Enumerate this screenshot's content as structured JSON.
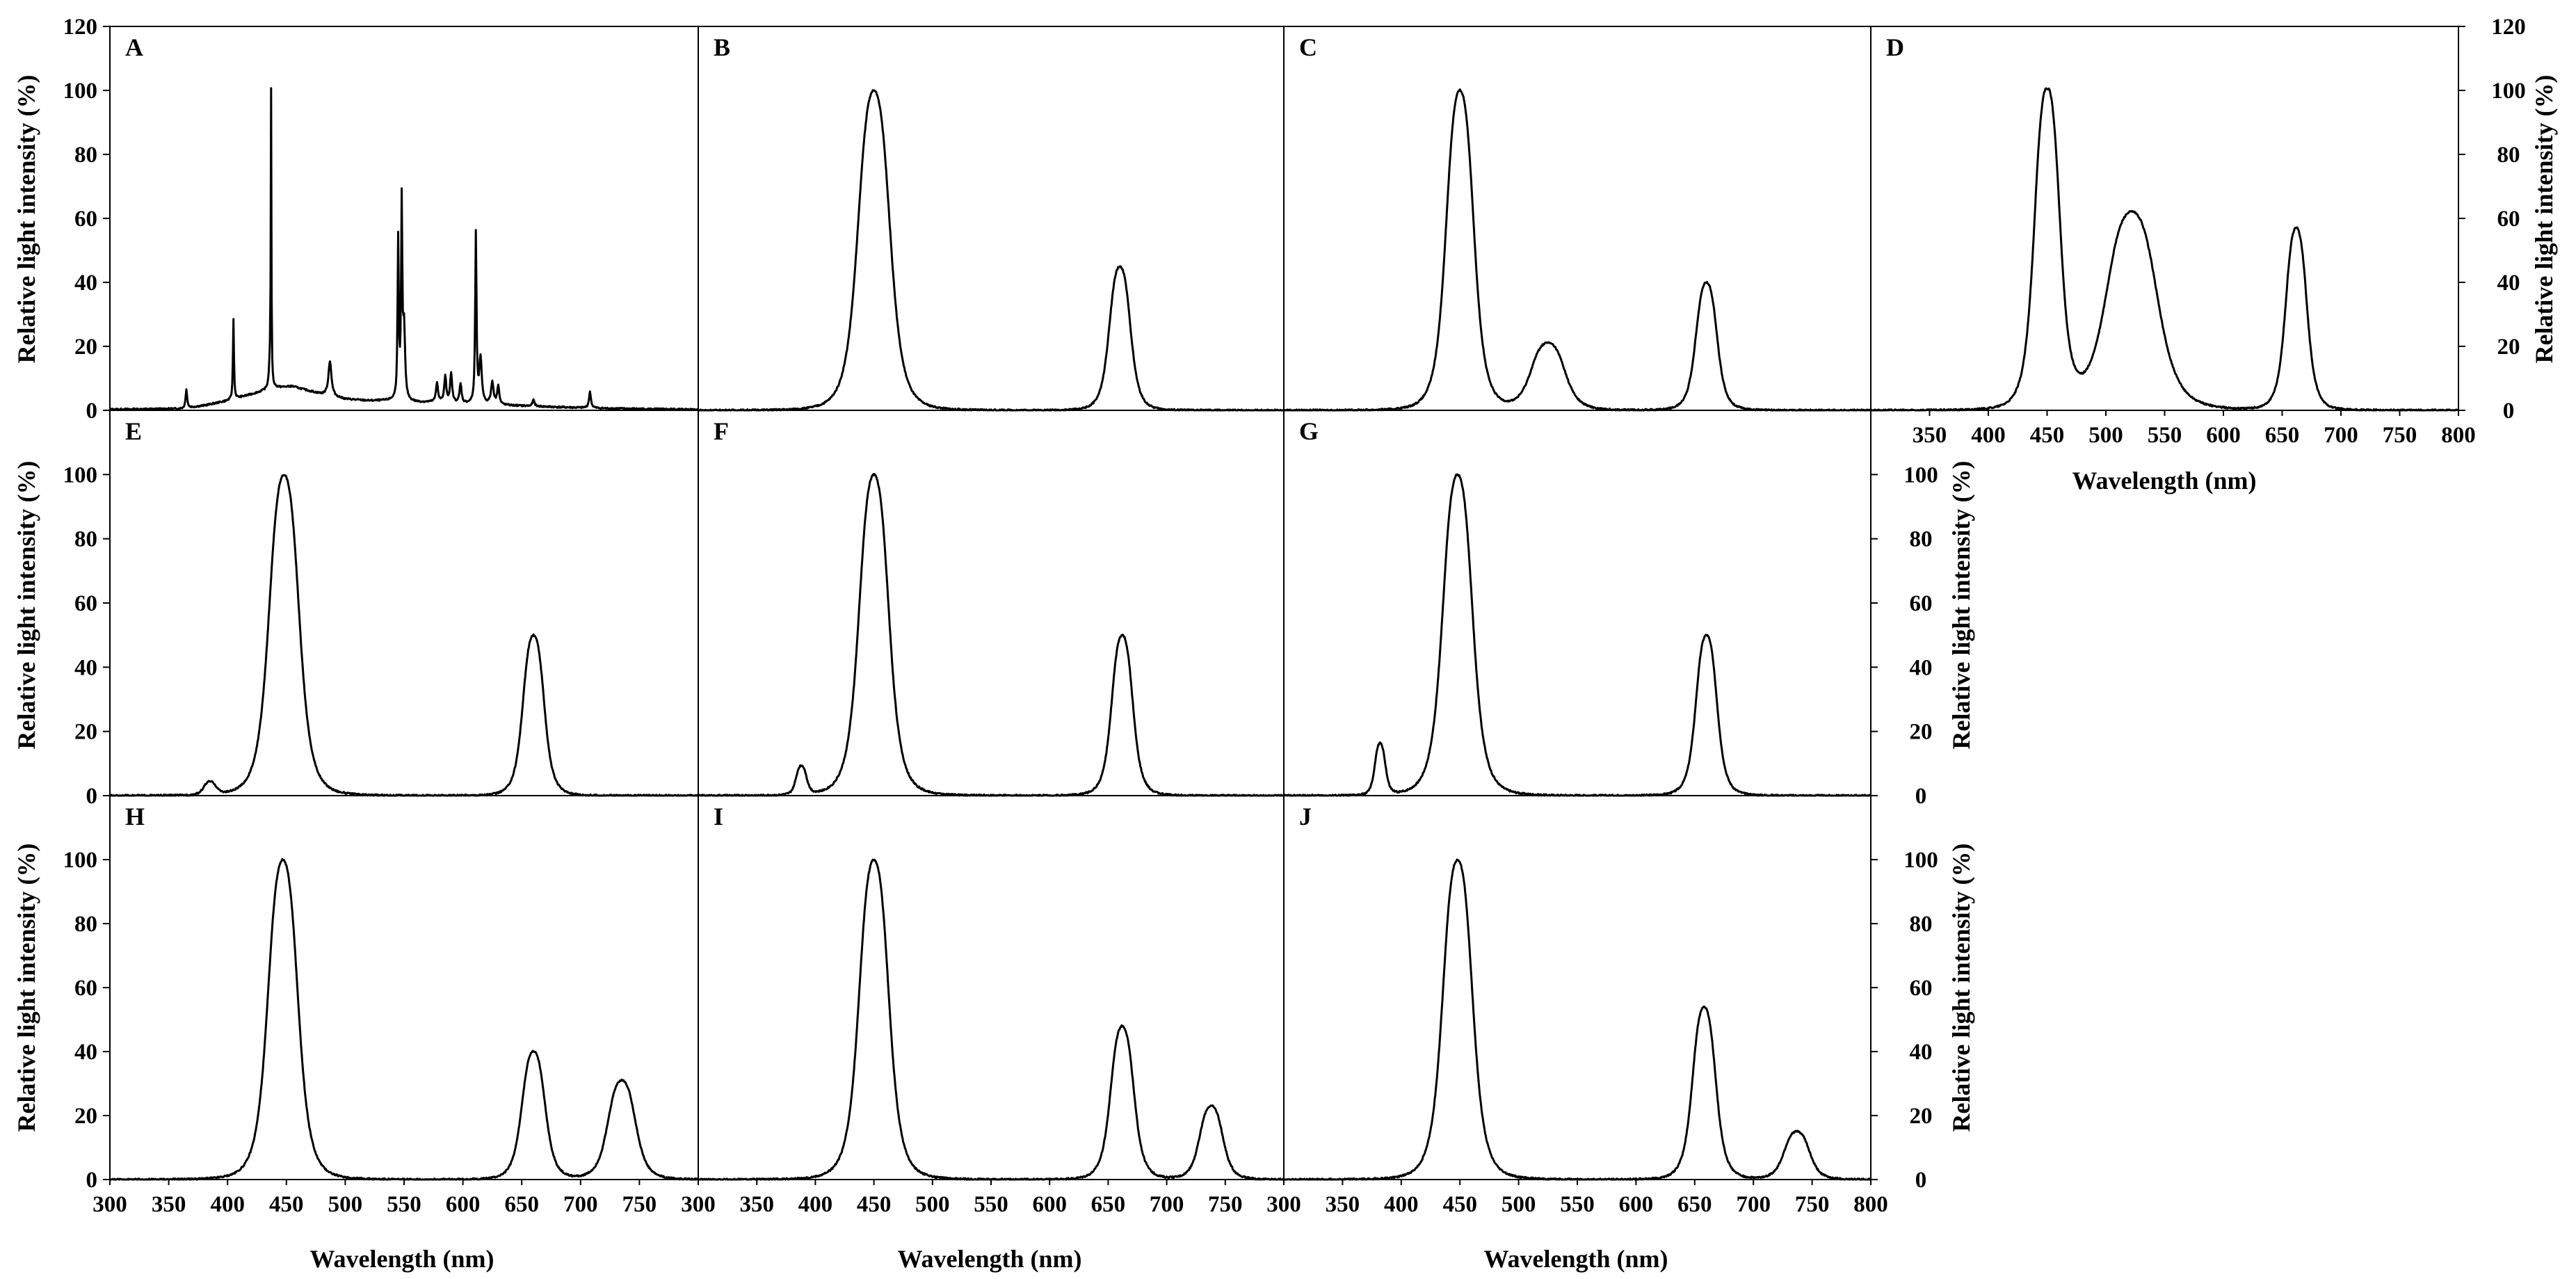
{
  "chart_data": {
    "type": "line",
    "title": "",
    "xlabel": "Wavelength (nm)",
    "ylabel": "Relative light intensity (%)",
    "ylim": [
      0,
      120
    ],
    "grid": false,
    "panels": [
      {
        "id": "A",
        "label": "A",
        "row": 0,
        "col": 0,
        "xlim": [
          300,
          800
        ],
        "ylim": [
          0,
          120
        ],
        "y_ticks": [
          0,
          20,
          40,
          60,
          80,
          100,
          120
        ],
        "series": [
          {
            "name": "A",
            "kind": "lines",
            "background": [
              [
                300,
                0.3
              ],
              [
                360,
                0.5
              ],
              [
                380,
                1.5
              ],
              [
                400,
                3
              ],
              [
                420,
                5
              ],
              [
                440,
                7
              ],
              [
                455,
                7.5
              ],
              [
                470,
                6
              ],
              [
                480,
                5
              ],
              [
                500,
                3.5
              ],
              [
                520,
                3
              ],
              [
                540,
                3
              ],
              [
                560,
                2.5
              ],
              [
                580,
                2.5
              ],
              [
                600,
                2
              ],
              [
                640,
                1.5
              ],
              [
                680,
                1
              ],
              [
                720,
                0.6
              ],
              [
                760,
                0.4
              ],
              [
                800,
                0.3
              ]
            ],
            "lines": [
              [
                365,
                6,
                1.5
              ],
              [
                405,
                25,
                1
              ],
              [
                436,
                7,
                2
              ],
              [
                437,
                100,
                0.6
              ],
              [
                487,
                11,
                3
              ],
              [
                545,
                50,
                1.2
              ],
              [
                548,
                60,
                1.2
              ],
              [
                550,
                22,
                2
              ],
              [
                578,
                6,
                2
              ],
              [
                585,
                8,
                2
              ],
              [
                590,
                9,
                2
              ],
              [
                598,
                6,
                2
              ],
              [
                611,
                53,
                1.3
              ],
              [
                615,
                14,
                2.5
              ],
              [
                625,
                7,
                2.5
              ],
              [
                630,
                6,
                2
              ],
              [
                660,
                2,
                2
              ],
              [
                708,
                5,
                2
              ]
            ]
          }
        ]
      },
      {
        "id": "B",
        "label": "B",
        "row": 0,
        "col": 1,
        "xlim": [
          300,
          800
        ],
        "ylim": [
          0,
          120
        ],
        "y_ticks": [],
        "series": [
          {
            "name": "B",
            "kind": "peaks",
            "peaks": [
              [
                450,
                100,
                15
              ],
              [
                660,
                45,
                10
              ]
            ]
          }
        ]
      },
      {
        "id": "C",
        "label": "C",
        "row": 0,
        "col": 2,
        "xlim": [
          300,
          800
        ],
        "ylim": [
          0,
          120
        ],
        "y_ticks": [],
        "series": [
          {
            "name": "C",
            "kind": "peaks",
            "peaks": [
              [
                450,
                100,
                13
              ],
              [
                525,
                21,
                16
              ],
              [
                660,
                40,
                10
              ]
            ]
          }
        ]
      },
      {
        "id": "D",
        "label": "D",
        "row": 0,
        "col": 3,
        "xlim": [
          300,
          800
        ],
        "ylim": [
          0,
          120
        ],
        "y_ticks": [
          0,
          20,
          40,
          60,
          80,
          100,
          120
        ],
        "x_ticks": [
          350,
          400,
          450,
          500,
          550,
          600,
          650,
          700,
          750,
          800
        ],
        "series": [
          {
            "name": "D",
            "kind": "peaks",
            "peaks": [
              [
                450,
                100,
                12
              ],
              [
                522,
                62,
                24
              ],
              [
                662,
                57,
                10
              ]
            ]
          }
        ]
      },
      {
        "id": "E",
        "label": "E",
        "row": 1,
        "col": 0,
        "xlim": [
          300,
          800
        ],
        "ylim": [
          0,
          120
        ],
        "y_ticks": [
          0,
          20,
          40,
          60,
          80,
          100
        ],
        "series": [
          {
            "name": "E",
            "kind": "peaks",
            "peaks": [
              [
                385,
                4,
                6
              ],
              [
                448,
                100,
                14
              ],
              [
                660,
                50,
                10
              ]
            ]
          }
        ]
      },
      {
        "id": "F",
        "label": "F",
        "row": 1,
        "col": 1,
        "xlim": [
          300,
          800
        ],
        "ylim": [
          0,
          120
        ],
        "y_ticks": [],
        "series": [
          {
            "name": "F",
            "kind": "peaks",
            "peaks": [
              [
                388,
                9,
                5
              ],
              [
                450,
                100,
                14
              ],
              [
                662,
                50,
                10
              ]
            ]
          }
        ]
      },
      {
        "id": "G",
        "label": "G",
        "row": 1,
        "col": 2,
        "xlim": [
          300,
          800
        ],
        "ylim": [
          0,
          120
        ],
        "y_ticks": [
          0,
          20,
          40,
          60,
          80,
          100
        ],
        "series": [
          {
            "name": "G",
            "kind": "peaks",
            "peaks": [
              [
                382,
                16,
                5
              ],
              [
                448,
                100,
                14
              ],
              [
                660,
                50,
                10
              ]
            ]
          }
        ]
      },
      {
        "id": "H",
        "label": "H",
        "row": 2,
        "col": 0,
        "xlim": [
          300,
          800
        ],
        "ylim": [
          0,
          120
        ],
        "y_ticks": [
          0,
          20,
          40,
          60,
          80,
          100
        ],
        "x_ticks": [
          300,
          350,
          400,
          450,
          500,
          550,
          600,
          650,
          700,
          750
        ],
        "series": [
          {
            "name": "H",
            "kind": "peaks",
            "peaks": [
              [
                447,
                100,
                14
              ],
              [
                660,
                40,
                11
              ],
              [
                735,
                31,
                13
              ]
            ]
          }
        ]
      },
      {
        "id": "I",
        "label": "I",
        "row": 2,
        "col": 1,
        "xlim": [
          300,
          800
        ],
        "ylim": [
          0,
          120
        ],
        "y_ticks": [],
        "x_ticks": [
          300,
          350,
          400,
          450,
          500,
          550,
          600,
          650,
          700,
          750
        ],
        "series": [
          {
            "name": "I",
            "kind": "peaks",
            "peaks": [
              [
                450,
                100,
                14
              ],
              [
                662,
                48,
                11
              ],
              [
                738,
                23,
                11
              ]
            ]
          }
        ]
      },
      {
        "id": "J",
        "label": "J",
        "row": 2,
        "col": 2,
        "xlim": [
          300,
          800
        ],
        "ylim": [
          0,
          120
        ],
        "y_ticks": [
          0,
          20,
          40,
          60,
          80,
          100
        ],
        "x_ticks": [
          300,
          350,
          400,
          450,
          500,
          550,
          600,
          650,
          700,
          750,
          800
        ],
        "series": [
          {
            "name": "J",
            "kind": "peaks",
            "peaks": [
              [
                448,
                100,
                14
              ],
              [
                658,
                54,
                11
              ],
              [
                737,
                15,
                12
              ]
            ]
          }
        ]
      }
    ],
    "x_axis_titles": [
      "Wavelength (nm)",
      "Wavelength (nm)",
      "Wavelength (nm)",
      "Wavelength (nm)"
    ],
    "y_axis_titles": [
      "Relative light intensity (%)",
      "Relative light intensity (%)",
      "Relative light intensity (%)",
      "Relative light intensity (%)",
      "Relative light intensity (%)",
      "Relative light intensity (%)"
    ]
  }
}
